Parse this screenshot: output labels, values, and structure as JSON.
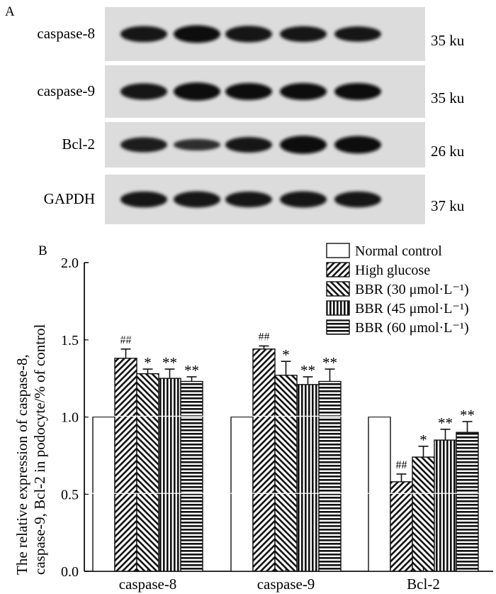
{
  "panels": {
    "a_label": "A",
    "b_label": "B"
  },
  "blot": {
    "rows": [
      {
        "protein": "caspase-8",
        "size": "35 ku",
        "intensity": [
          0.9,
          1.05,
          0.95,
          0.88,
          0.82
        ]
      },
      {
        "protein": "caspase-9",
        "size": "35 ku",
        "intensity": [
          0.95,
          1.1,
          1.0,
          1.0,
          1.0
        ]
      },
      {
        "protein": "Bcl-2",
        "size": "26 ku",
        "intensity": [
          0.8,
          0.45,
          0.85,
          1.1,
          1.05
        ]
      },
      {
        "protein": "GAPDH",
        "size": "37 ku",
        "intensity": [
          0.9,
          0.92,
          0.88,
          0.92,
          0.9
        ]
      }
    ]
  },
  "chart_data": {
    "type": "bar",
    "categories": [
      "caspase-8",
      "caspase-9",
      "Bcl-2"
    ],
    "ylabel_line1": "The relative expression of caspase-8,",
    "ylabel_line2": "caspase-9, Bcl-2 in podocyte/% of control",
    "ylim": [
      0,
      2.0
    ],
    "yticks": [
      "0.0",
      "0.5",
      "1.0",
      "1.5",
      "2.0"
    ],
    "grid": "horizontal white lines inside bars",
    "legend_placement": "top-right",
    "series": [
      {
        "name": "Normal control",
        "pattern": "none",
        "values": [
          1.0,
          1.0,
          1.0
        ],
        "errors": [
          0,
          0,
          0
        ],
        "sig": [
          "",
          "",
          ""
        ]
      },
      {
        "name": "High glucose",
        "pattern": "diag-up",
        "values": [
          1.38,
          1.44,
          0.58
        ],
        "errors": [
          0.06,
          0.02,
          0.05
        ],
        "sig": [
          "##",
          "##",
          "##"
        ]
      },
      {
        "name": "BBR (30 μmol·L⁻¹)",
        "pattern": "diag-down",
        "values": [
          1.28,
          1.27,
          0.74
        ],
        "errors": [
          0.03,
          0.09,
          0.07
        ],
        "sig": [
          "*",
          "*",
          "*"
        ]
      },
      {
        "name": "BBR (45 μmol·L⁻¹)",
        "pattern": "vertical",
        "values": [
          1.25,
          1.21,
          0.85
        ],
        "errors": [
          0.06,
          0.05,
          0.07
        ],
        "sig": [
          "**",
          "**",
          "**"
        ]
      },
      {
        "name": "BBR (60 μmol·L⁻¹)",
        "pattern": "horizontal",
        "values": [
          1.23,
          1.23,
          0.9
        ],
        "errors": [
          0.03,
          0.08,
          0.07
        ],
        "sig": [
          "**",
          "**",
          "**"
        ]
      }
    ]
  }
}
